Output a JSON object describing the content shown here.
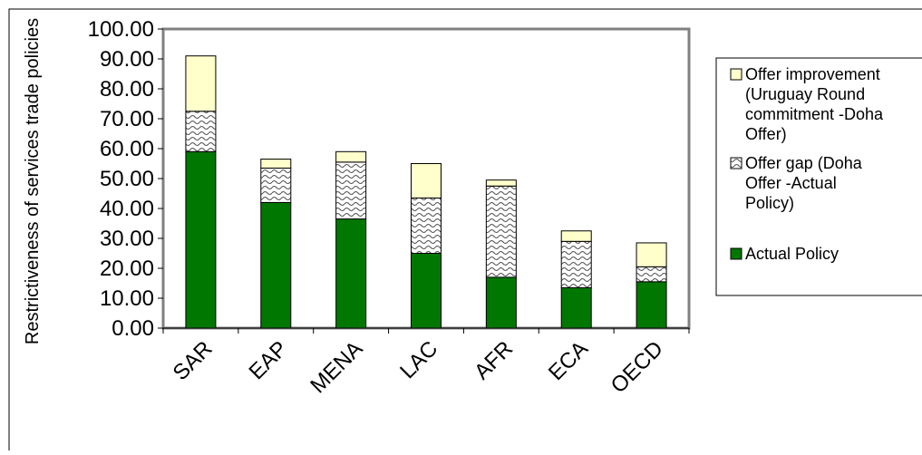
{
  "chart_data": {
    "type": "bar",
    "stacked": true,
    "categories": [
      "SAR",
      "EAP",
      "MENA",
      "LAC",
      "AFR",
      "ECA",
      "OECD"
    ],
    "series": [
      {
        "name": "Actual Policy",
        "values": [
          59.0,
          42.0,
          36.5,
          25.0,
          17.0,
          13.5,
          15.5
        ],
        "color": "#007700",
        "pattern": "solid"
      },
      {
        "name": "Offer gap (Doha Offer -Actual Policy)",
        "values": [
          13.5,
          11.5,
          19.0,
          18.5,
          30.5,
          15.5,
          5.0
        ],
        "color": "#ffffff",
        "pattern": "wave"
      },
      {
        "name": "Offer improvement (Uruguay Round commitment -Doha Offer)",
        "values": [
          18.5,
          3.0,
          3.5,
          11.5,
          2.0,
          3.5,
          8.0
        ],
        "color": "#ffffcc",
        "pattern": "solid"
      }
    ],
    "ylabel": "Restrictiveness of services trade policies",
    "xlabel": "",
    "ylim": [
      0,
      100
    ],
    "yticks": [
      "0.00",
      "10.00",
      "20.00",
      "30.00",
      "40.00",
      "50.00",
      "60.00",
      "70.00",
      "80.00",
      "90.00",
      "100.00"
    ],
    "legend": {
      "position": "right",
      "items": [
        {
          "series": 2,
          "lines": [
            "Offer improvement",
            "(Uruguay Round",
            "commitment -Doha",
            "Offer)"
          ]
        },
        {
          "series": 1,
          "lines": [
            "Offer gap (Doha",
            "Offer -Actual",
            "Policy)"
          ]
        },
        {
          "series": 0,
          "lines": [
            "Actual Policy"
          ]
        }
      ]
    },
    "grid": false,
    "colors": {
      "plot_border": "#808080",
      "bar_stroke": "#000000"
    }
  }
}
